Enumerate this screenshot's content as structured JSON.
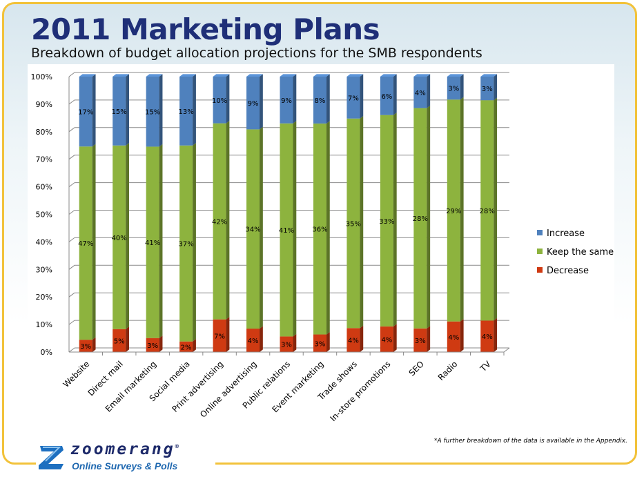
{
  "title": "2011 Marketing Plans",
  "subtitle": "Breakdown of budget allocation projections for the SMB respondents",
  "footnote": "*A further breakdown of the data is available in the Appendix.",
  "logo": {
    "word": "zoomerang",
    "registered": "®",
    "tagline": "Online Surveys & Polls",
    "icon": "zoomerang-z-logo-icon"
  },
  "colors": {
    "increase": "#4f81bd",
    "keep": "#8db33e",
    "decrease": "#cf3a12",
    "title": "#1f2f78"
  },
  "chart_data": {
    "type": "bar",
    "stacked": true,
    "percent_stacked": true,
    "title": "",
    "xlabel": "",
    "ylabel": "",
    "ylim": [
      0,
      100
    ],
    "yticks": [
      "0%",
      "10%",
      "20%",
      "30%",
      "40%",
      "50%",
      "60%",
      "70%",
      "80%",
      "90%",
      "100%"
    ],
    "grid": true,
    "legend_position": "right",
    "categories": [
      "Website",
      "Direct mail",
      "Email marketing",
      "Social media",
      "Print advertising",
      "Online advertising",
      "Public relations",
      "Event marketing",
      "Trade shows",
      "In-store promotions",
      "SEO",
      "Radio",
      "TV"
    ],
    "series": [
      {
        "name": "Decrease",
        "color": "#cf3a12",
        "values": [
          3,
          5,
          3,
          2,
          7,
          4,
          3,
          3,
          4,
          4,
          3,
          4,
          4
        ],
        "labels": [
          "3%",
          "5%",
          "3%",
          "2%",
          "7%",
          "4%",
          "3%",
          "3%",
          "4%",
          "4%",
          "3%",
          "4%",
          "4%"
        ]
      },
      {
        "name": "Keep the same",
        "color": "#8db33e",
        "values": [
          47,
          40,
          41,
          37,
          42,
          34,
          41,
          36,
          35,
          33,
          28,
          29,
          28
        ],
        "labels": [
          "47%",
          "40%",
          "41%",
          "37%",
          "42%",
          "34%",
          "41%",
          "36%",
          "35%",
          "33%",
          "28%",
          "29%",
          "28%"
        ]
      },
      {
        "name": "Increase",
        "color": "#4f81bd",
        "values": [
          17,
          15,
          15,
          13,
          10,
          9,
          9,
          8,
          7,
          6,
          4,
          3,
          3
        ],
        "labels": [
          "17%",
          "15%",
          "15%",
          "13%",
          "10%",
          "9%",
          "9%",
          "8%",
          "7%",
          "6%",
          "4%",
          "3%",
          "3%"
        ]
      }
    ],
    "legend": [
      "Increase",
      "Keep the same",
      "Decrease"
    ]
  }
}
